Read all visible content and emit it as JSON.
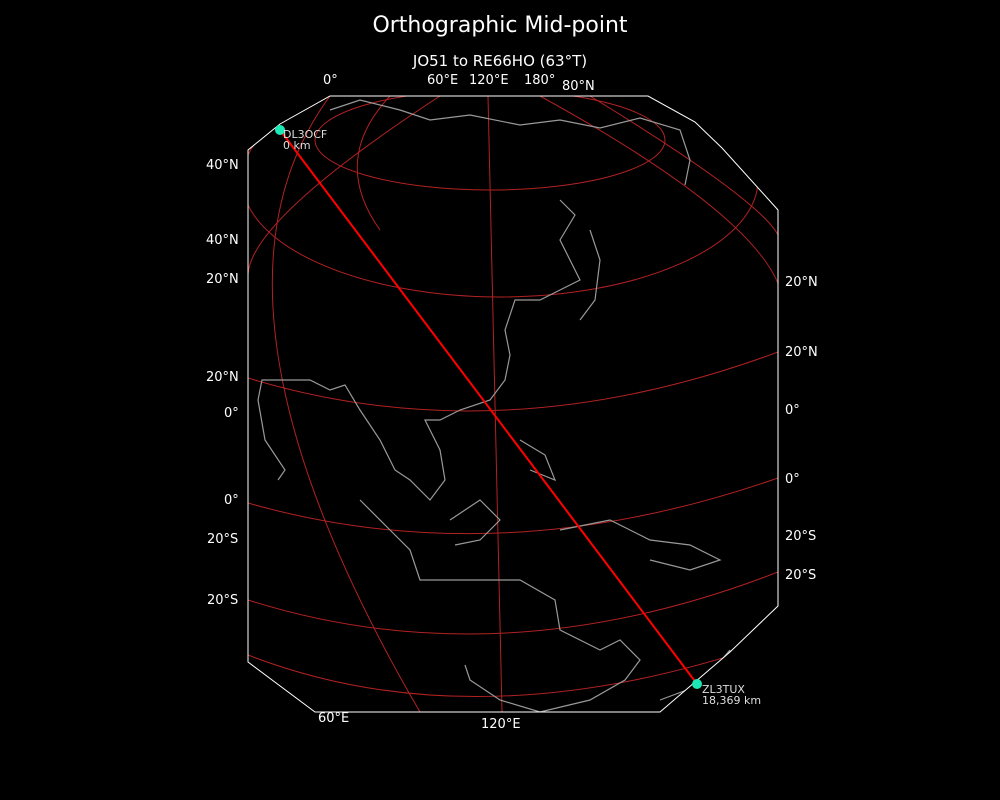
{
  "title": "Orthographic Mid-point",
  "subtitle": "JO51 to RE66HO (63°T)",
  "colors": {
    "background": "#000000",
    "graticule": "#b22222",
    "path": "#ff0000",
    "coast": "#999999",
    "marker": "#1de9b6",
    "frame": "#ffffff"
  },
  "map": {
    "projection": "orthographic",
    "bearing_deg": 63
  },
  "stations": [
    {
      "call": "DL3OCF",
      "distance": "0 km"
    },
    {
      "call": "ZL3TUX",
      "distance": "18,369 km"
    }
  ],
  "graticule_labels": {
    "top": [
      "0°",
      "60°E",
      "120°E",
      "180°",
      "80°N"
    ],
    "left": [
      "40°N",
      "40°N",
      "20°N",
      "20°N",
      "0°",
      "0°",
      "20°S",
      "20°S"
    ],
    "right": [
      "20°N",
      "20°N",
      "0°",
      "0°",
      "20°S",
      "20°S"
    ],
    "bottom": [
      "60°E",
      "120°E"
    ]
  }
}
